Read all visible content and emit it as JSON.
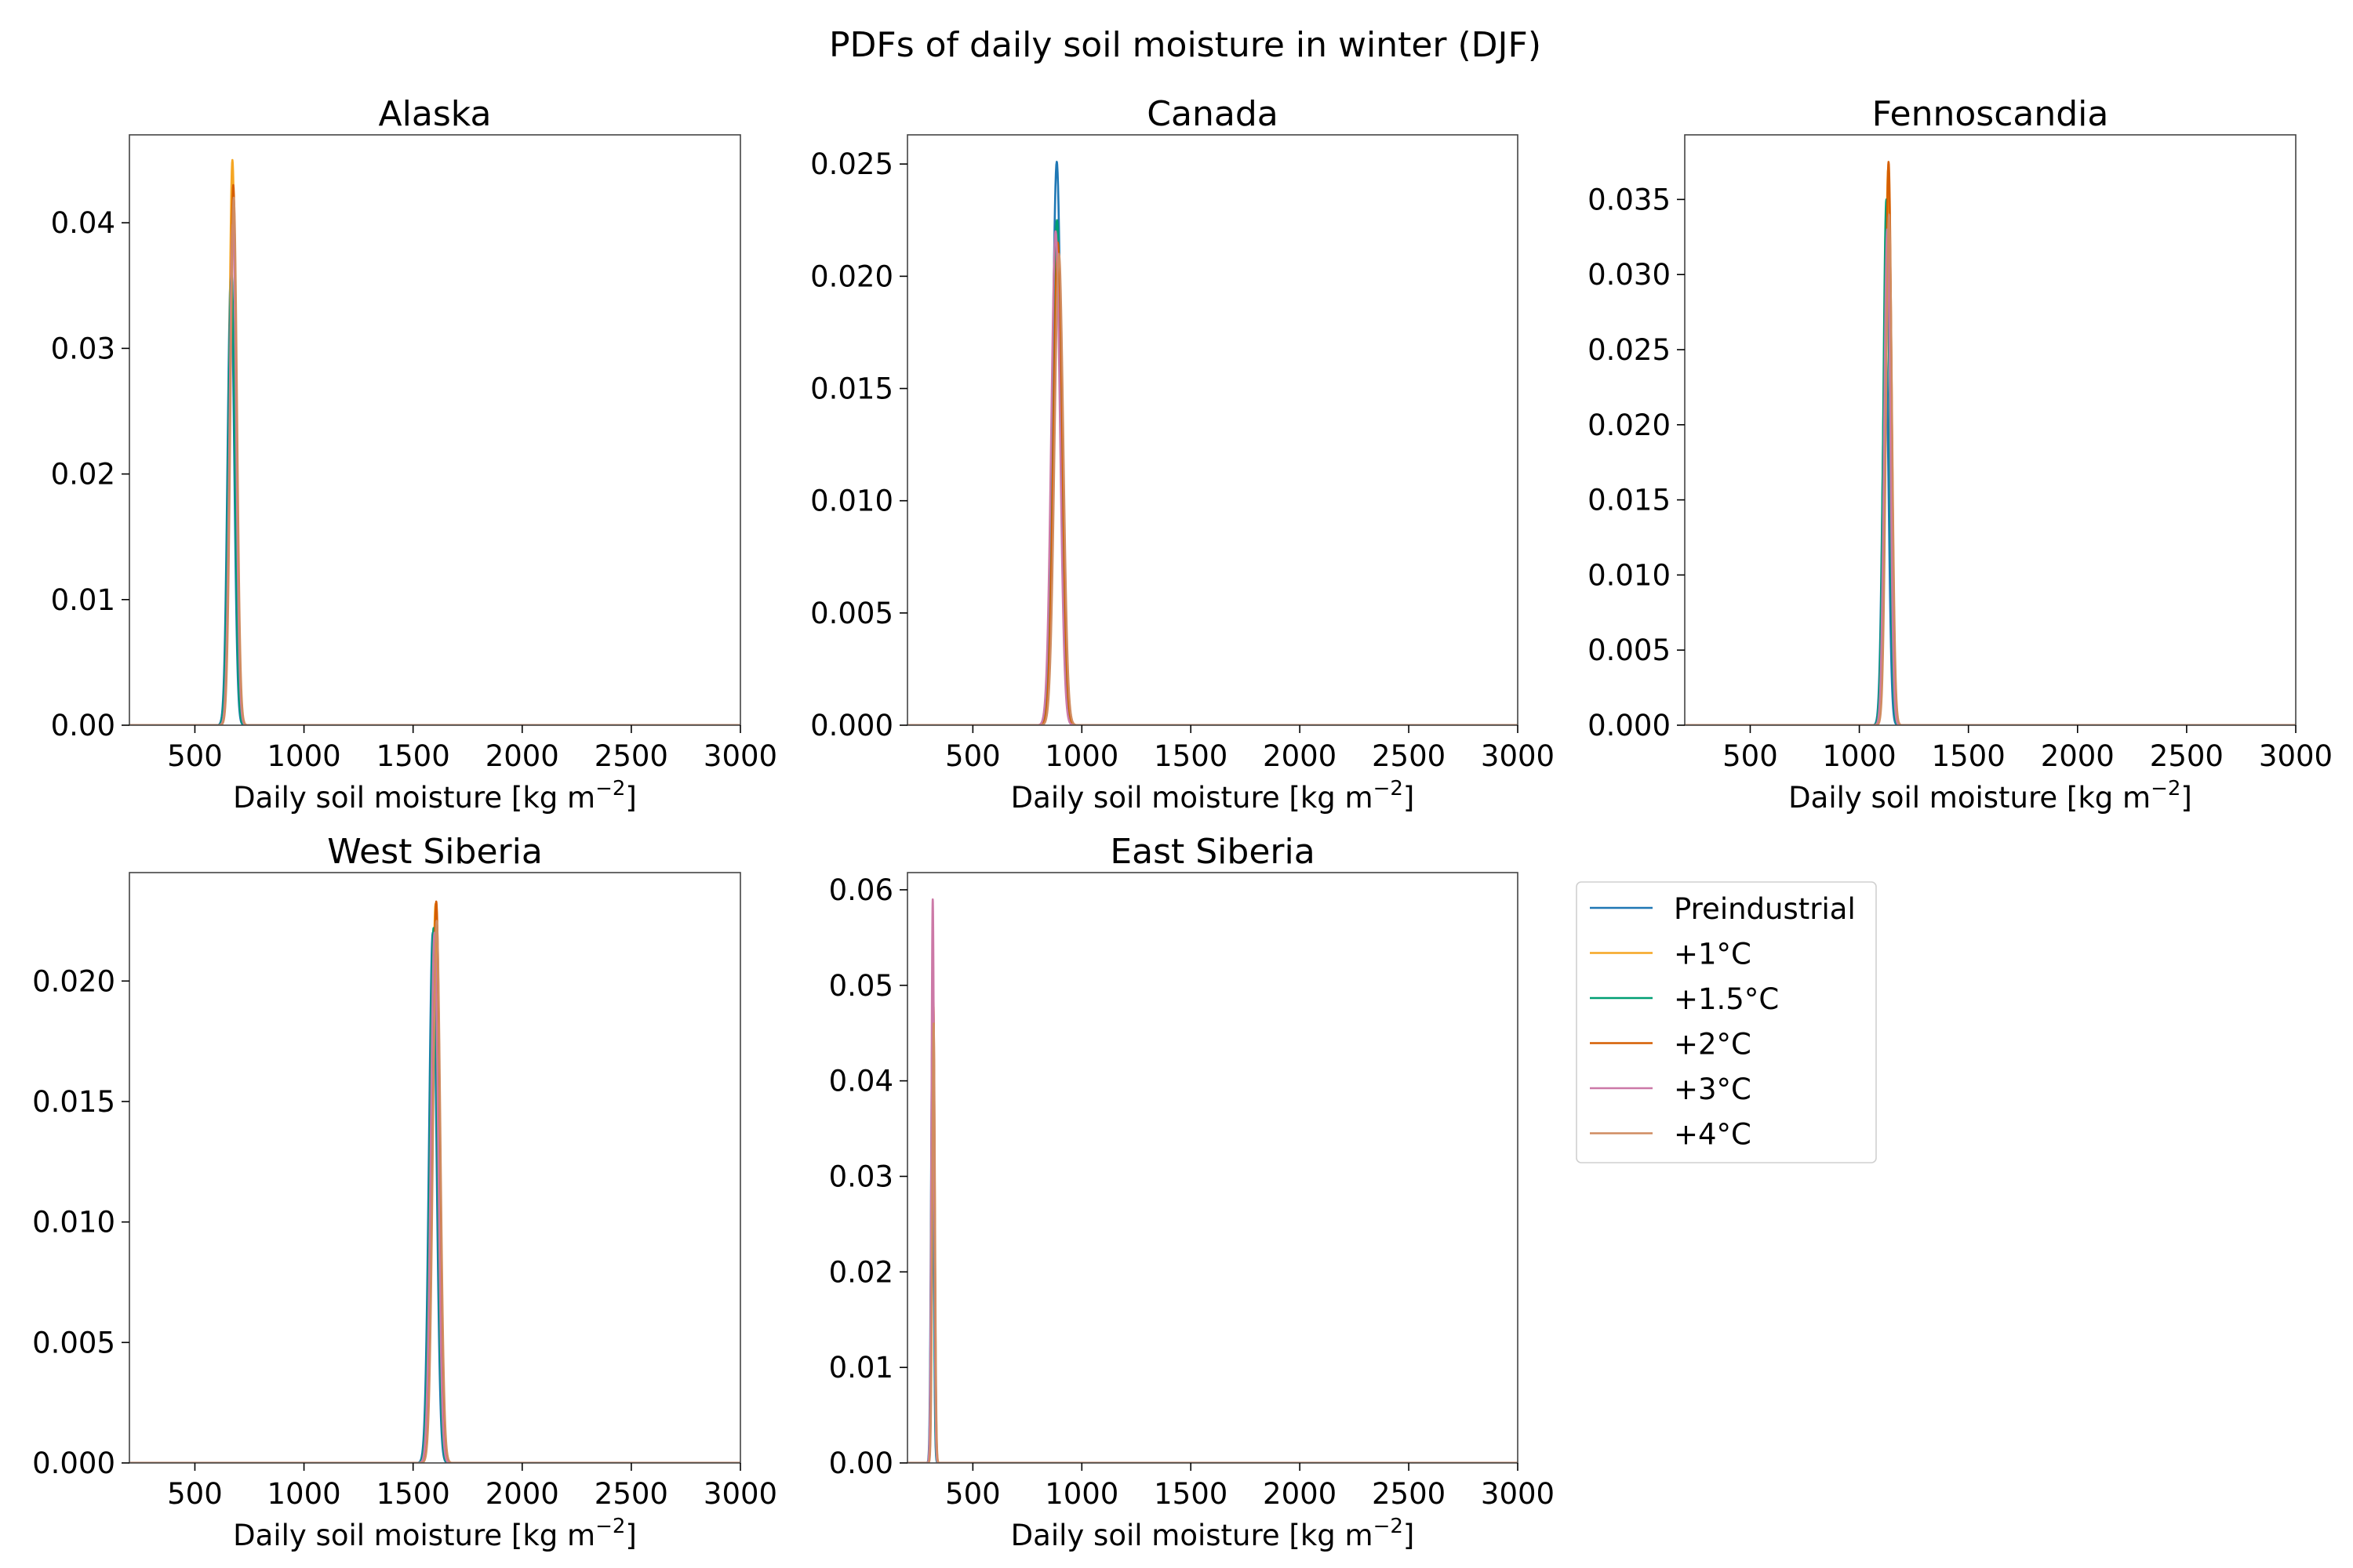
{
  "figure": {
    "title": "PDFs of daily soil moisture in winter (DJF)"
  },
  "legend": {
    "placement": "right of East Siberia panel, upper",
    "entries": [
      {
        "label": "Preindustrial",
        "color": "#1f77b4"
      },
      {
        "label": "+1°C",
        "color": "#f5a623"
      },
      {
        "label": "+1.5°C",
        "color": "#009e73"
      },
      {
        "label": "+2°C",
        "color": "#d55e00"
      },
      {
        "label": "+3°C",
        "color": "#cc79a7"
      },
      {
        "label": "+4°C",
        "color": "#d08c60"
      }
    ]
  },
  "chart_data": [
    {
      "type": "line",
      "title": "Alaska",
      "xlabel": "Daily soil moisture [kg m",
      "xlabel_sup": "−2",
      "xlabel_end": "]",
      "ylabel": "",
      "xlim": [
        200,
        3000
      ],
      "ylim": [
        0,
        0.047
      ],
      "xticks": [
        500,
        1000,
        1500,
        2000,
        2500,
        3000
      ],
      "yticks": [
        0,
        0.01,
        0.02,
        0.03,
        0.04
      ],
      "ytick_labels": [
        "0.00",
        "0.01",
        "0.02",
        "0.03",
        "0.04"
      ],
      "grid": false,
      "series": [
        {
          "name": "Preindustrial",
          "peak_x": 665,
          "peak_y": 0.036,
          "width": 15
        },
        {
          "name": "+1°C",
          "peak_x": 672,
          "peak_y": 0.045,
          "width": 15
        },
        {
          "name": "+1.5°C",
          "peak_x": 668,
          "peak_y": 0.036,
          "width": 15
        },
        {
          "name": "+2°C",
          "peak_x": 676,
          "peak_y": 0.043,
          "width": 15
        },
        {
          "name": "+3°C",
          "peak_x": 674,
          "peak_y": 0.04,
          "width": 15
        },
        {
          "name": "+4°C",
          "peak_x": 678,
          "peak_y": 0.042,
          "width": 15
        }
      ]
    },
    {
      "type": "line",
      "title": "Canada",
      "xlabel": "Daily soil moisture [kg m",
      "xlabel_sup": "−2",
      "xlabel_end": "]",
      "ylabel": "",
      "xlim": [
        200,
        3000
      ],
      "ylim": [
        0,
        0.0263
      ],
      "xticks": [
        500,
        1000,
        1500,
        2000,
        2500,
        3000
      ],
      "yticks": [
        0,
        0.005,
        0.01,
        0.015,
        0.02,
        0.025
      ],
      "ytick_labels": [
        "0.000",
        "0.005",
        "0.010",
        "0.015",
        "0.020",
        "0.025"
      ],
      "grid": false,
      "series": [
        {
          "name": "Preindustrial",
          "peak_x": 885,
          "peak_y": 0.0251,
          "width": 20
        },
        {
          "name": "+1°C",
          "peak_x": 892,
          "peak_y": 0.0205,
          "width": 20
        },
        {
          "name": "+1.5°C",
          "peak_x": 886,
          "peak_y": 0.0225,
          "width": 20
        },
        {
          "name": "+2°C",
          "peak_x": 890,
          "peak_y": 0.0215,
          "width": 20
        },
        {
          "name": "+3°C",
          "peak_x": 880,
          "peak_y": 0.022,
          "width": 20
        },
        {
          "name": "+4°C",
          "peak_x": 895,
          "peak_y": 0.021,
          "width": 20
        }
      ]
    },
    {
      "type": "line",
      "title": "Fennoscandia",
      "xlabel": "Daily soil moisture [kg m",
      "xlabel_sup": "−2",
      "xlabel_end": "]",
      "ylabel": "",
      "xlim": [
        200,
        3000
      ],
      "ylim": [
        0,
        0.0393
      ],
      "xticks": [
        500,
        1000,
        1500,
        2000,
        2500,
        3000
      ],
      "yticks": [
        0,
        0.005,
        0.01,
        0.015,
        0.02,
        0.025,
        0.03,
        0.035
      ],
      "ytick_labels": [
        "0.000",
        "0.005",
        "0.010",
        "0.015",
        "0.020",
        "0.025",
        "0.030",
        "0.035"
      ],
      "grid": false,
      "series": [
        {
          "name": "Preindustrial",
          "peak_x": 1120,
          "peak_y": 0.026,
          "width": 14
        },
        {
          "name": "+1°C",
          "peak_x": 1132,
          "peak_y": 0.037,
          "width": 14
        },
        {
          "name": "+1.5°C",
          "peak_x": 1124,
          "peak_y": 0.035,
          "width": 14
        },
        {
          "name": "+2°C",
          "peak_x": 1134,
          "peak_y": 0.0375,
          "width": 14
        },
        {
          "name": "+3°C",
          "peak_x": 1128,
          "peak_y": 0.033,
          "width": 14
        },
        {
          "name": "+4°C",
          "peak_x": 1136,
          "peak_y": 0.034,
          "width": 14
        }
      ]
    },
    {
      "type": "line",
      "title": "West Siberia",
      "xlabel": "Daily soil moisture [kg m",
      "xlabel_sup": "−2",
      "xlabel_end": "]",
      "ylabel": "",
      "xlim": [
        200,
        3000
      ],
      "ylim": [
        0,
        0.0245
      ],
      "xticks": [
        500,
        1000,
        1500,
        2000,
        2500,
        3000
      ],
      "yticks": [
        0,
        0.005,
        0.01,
        0.015,
        0.02
      ],
      "ytick_labels": [
        "0.000",
        "0.005",
        "0.010",
        "0.015",
        "0.020"
      ],
      "grid": false,
      "series": [
        {
          "name": "Preindustrial",
          "peak_x": 1590,
          "peak_y": 0.022,
          "width": 17
        },
        {
          "name": "+1°C",
          "peak_x": 1603,
          "peak_y": 0.0232,
          "width": 17
        },
        {
          "name": "+1.5°C",
          "peak_x": 1594,
          "peak_y": 0.0222,
          "width": 17
        },
        {
          "name": "+2°C",
          "peak_x": 1606,
          "peak_y": 0.0233,
          "width": 17
        },
        {
          "name": "+3°C",
          "peak_x": 1598,
          "peak_y": 0.022,
          "width": 17
        },
        {
          "name": "+4°C",
          "peak_x": 1608,
          "peak_y": 0.0225,
          "width": 17
        }
      ]
    },
    {
      "type": "line",
      "title": "East Siberia",
      "xlabel": "Daily soil moisture [kg m",
      "xlabel_sup": "−2",
      "xlabel_end": "]",
      "ylabel": "",
      "xlim": [
        200,
        3000
      ],
      "ylim": [
        0,
        0.0618
      ],
      "xticks": [
        500,
        1000,
        1500,
        2000,
        2500,
        3000
      ],
      "yticks": [
        0,
        0.01,
        0.02,
        0.03,
        0.04,
        0.05,
        0.06
      ],
      "ytick_labels": [
        "0.00",
        "0.01",
        "0.02",
        "0.03",
        "0.04",
        "0.05",
        "0.06"
      ],
      "grid": false,
      "series": [
        {
          "name": "Preindustrial",
          "peak_x": 314,
          "peak_y": 0.045,
          "width": 6
        },
        {
          "name": "+1°C",
          "peak_x": 318,
          "peak_y": 0.05,
          "width": 6
        },
        {
          "name": "+1.5°C",
          "peak_x": 315,
          "peak_y": 0.044,
          "width": 6
        },
        {
          "name": "+2°C",
          "peak_x": 319,
          "peak_y": 0.048,
          "width": 6
        },
        {
          "name": "+3°C",
          "peak_x": 316,
          "peak_y": 0.059,
          "width": 6
        },
        {
          "name": "+4°C",
          "peak_x": 320,
          "peak_y": 0.046,
          "width": 6
        }
      ]
    }
  ]
}
